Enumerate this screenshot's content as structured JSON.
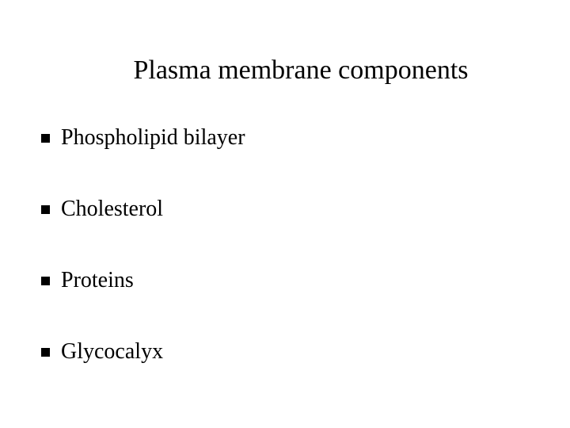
{
  "slide": {
    "title": "Plasma membrane components",
    "title_fontsize": 34,
    "background_color": "#ffffff",
    "text_color": "#000000",
    "font_family": "Times New Roman",
    "bullets": [
      {
        "label": "Phospholipid bilayer"
      },
      {
        "label": "Cholesterol"
      },
      {
        "label": "Proteins"
      },
      {
        "label": "Glycocalyx"
      }
    ],
    "bullet_fontsize": 28,
    "bullet_marker_color": "#000000",
    "bullet_marker_size": 11,
    "bullet_spacing": 58
  }
}
